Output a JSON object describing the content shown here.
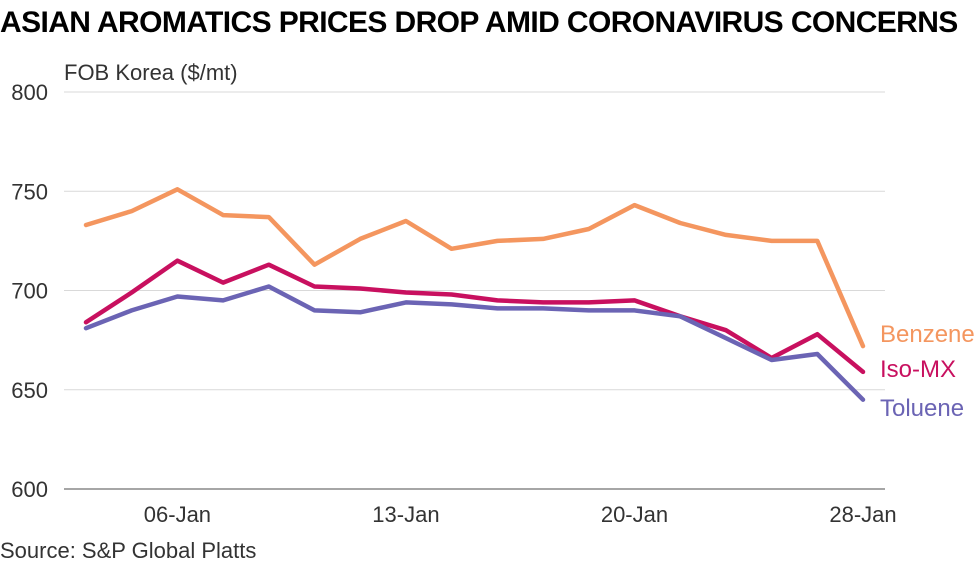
{
  "title": "ASIAN AROMATICS PRICES DROP AMID CORONAVIRUS CONCERNS",
  "source": "Source: S&P Global Platts",
  "chart_data": {
    "type": "line",
    "title": "ASIAN AROMATICS PRICES DROP AMID CORONAVIRUS CONCERNS",
    "ylabel": "FOB Korea ($/mt)",
    "xlabel": "",
    "ylim": [
      600,
      800
    ],
    "yticks": [
      600,
      650,
      700,
      750,
      800
    ],
    "x": [
      "02-Jan",
      "03-Jan",
      "06-Jan",
      "07-Jan",
      "08-Jan",
      "09-Jan",
      "10-Jan",
      "13-Jan",
      "14-Jan",
      "15-Jan",
      "16-Jan",
      "17-Jan",
      "20-Jan",
      "21-Jan",
      "22-Jan",
      "23-Jan",
      "24-Jan",
      "28-Jan"
    ],
    "xtick_labels": [
      "06-Jan",
      "13-Jan",
      "20-Jan",
      "28-Jan"
    ],
    "grid": "horizontal",
    "legend": "inline-right",
    "series": [
      {
        "name": "Benzene",
        "color": "#F4965F",
        "values": [
          733,
          740,
          751,
          738,
          737,
          713,
          726,
          735,
          721,
          725,
          726,
          731,
          743,
          734,
          728,
          725,
          725,
          672
        ]
      },
      {
        "name": "Iso-MX",
        "color": "#C8105F",
        "values": [
          684,
          699,
          715,
          704,
          713,
          702,
          701,
          699,
          698,
          695,
          694,
          694,
          695,
          687,
          680,
          666,
          678,
          659
        ]
      },
      {
        "name": "Toluene",
        "color": "#6B64B4",
        "values": [
          681,
          690,
          697,
          695,
          702,
          690,
          689,
          694,
          693,
          691,
          691,
          690,
          690,
          687,
          676,
          665,
          668,
          645
        ]
      }
    ]
  }
}
